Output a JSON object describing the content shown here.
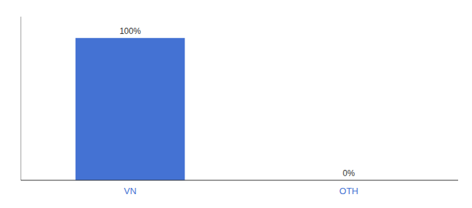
{
  "chart_data": {
    "type": "bar",
    "categories": [
      "VN",
      "OTH"
    ],
    "values": [
      100,
      0
    ],
    "value_labels": [
      "100%",
      "0%"
    ],
    "color": "#4472d3",
    "ylim": [
      0,
      115
    ],
    "data_labels": true,
    "tick_labels": "x",
    "grid": false
  }
}
